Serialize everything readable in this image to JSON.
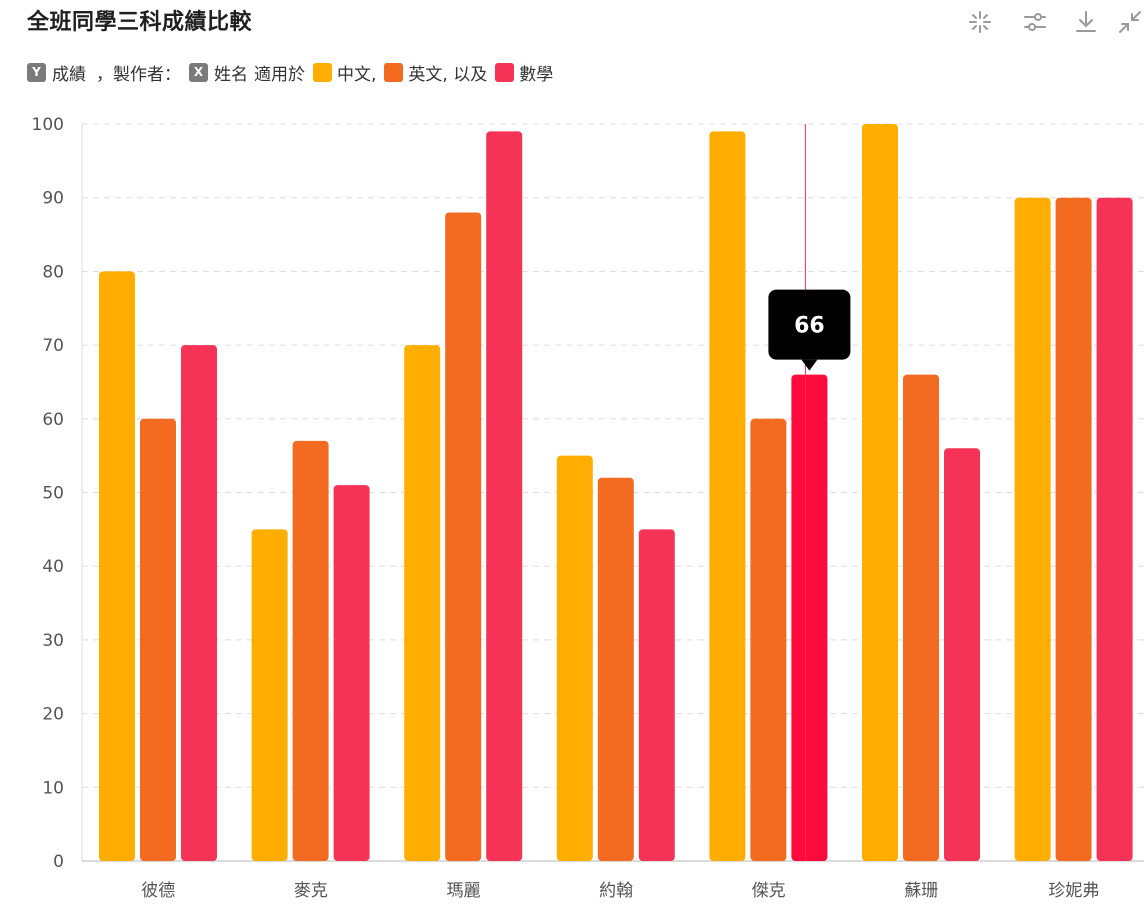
{
  "chart_data": {
    "type": "bar",
    "title": "全班同學三科成績比較",
    "categories": [
      "彼德",
      "麥克",
      "瑪麗",
      "約翰",
      "傑克",
      "蘇珊",
      "珍妮弗"
    ],
    "series": [
      {
        "name": "中文",
        "color": "#FFAE00",
        "values": [
          80,
          45,
          70,
          55,
          99,
          100,
          90
        ]
      },
      {
        "name": "英文",
        "color": "#F26B21",
        "values": [
          60,
          57,
          88,
          52,
          60,
          66,
          90
        ]
      },
      {
        "name": "數學",
        "color": "#F53356",
        "values": [
          70,
          51,
          99,
          45,
          66,
          56,
          90
        ]
      }
    ],
    "ylim": [
      0,
      100
    ],
    "yticks": [
      0,
      10,
      20,
      30,
      40,
      50,
      60,
      70,
      80,
      90,
      100
    ],
    "grid": true,
    "highlight": {
      "category_index": 4,
      "series_index": 2,
      "value": "66",
      "color": "#FF0A3C"
    }
  },
  "legend": {
    "y_badge": "Y",
    "y_text": "成績",
    "by_text": "，製作者：",
    "x_badge": "X",
    "x_text": "姓名",
    "applies_text": "適用於",
    "s1": "中文,",
    "s2": "英文, 以及",
    "s3": "數學"
  },
  "toolbar": {
    "icons": [
      "sparkle-icon",
      "sliders-icon",
      "download-icon",
      "collapse-icon"
    ]
  }
}
